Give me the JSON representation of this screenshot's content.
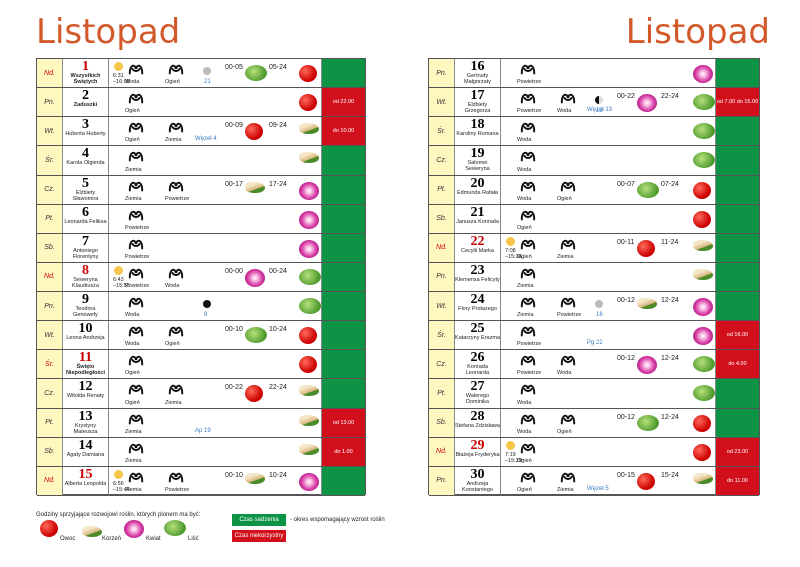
{
  "title_left": "Listopad",
  "title_right": "Listopad",
  "left_rows": [
    {
      "day": "Nd.",
      "num": "1",
      "names": "Wszystkich Świętych",
      "bold": true,
      "red": true,
      "sun": "6:31\n–16:08",
      "z1": "Woda",
      "z2": "Ogień",
      "moon": "full",
      "moontxt": "21",
      "t1": "00-05",
      "p1": "leaf",
      "t2": "05-24",
      "p2": "fruit",
      "side": "green",
      "sidetxt": ""
    },
    {
      "day": "Pn.",
      "num": "2",
      "names": "Zaduszki",
      "bold": true,
      "z1": "Ogień",
      "t2": "",
      "p2": "fruit",
      "side": "red",
      "sidetxt": "od 22.00"
    },
    {
      "day": "Wt.",
      "num": "3",
      "names": "Huberta Huberty",
      "z1": "Ogień",
      "z2": "Ziemia",
      "node": "Węzeł 4",
      "t1": "00-09",
      "p1": "fruit",
      "t2": "09-24",
      "p2": "root",
      "side": "red",
      "sidetxt": "do 10.00"
    },
    {
      "day": "Śr.",
      "num": "4",
      "names": "Karola Olgierda",
      "z1": "Ziemia",
      "p2": "root",
      "side": "green"
    },
    {
      "day": "Cz.",
      "num": "5",
      "names": "Elżbiety Sławomira",
      "z1": "Ziemia",
      "z2": "Powietrze",
      "t1": "00-17",
      "p1": "root",
      "t2": "17-24",
      "p2": "flower",
      "side": "green"
    },
    {
      "day": "Pt.",
      "num": "6",
      "names": "Leonarda Feliksa",
      "z1": "Powietrze",
      "p2": "flower",
      "side": "green"
    },
    {
      "day": "Sb.",
      "num": "7",
      "names": "Antoniego Florentyny",
      "z1": "Powietrze",
      "p2": "flower",
      "side": "green"
    },
    {
      "day": "Nd.",
      "num": "8",
      "names": "Seweryna Klaudiusza",
      "red": true,
      "sun": "6:43\n–15:55",
      "z1": "Powietrze",
      "z2": "Woda",
      "t1": "00-00",
      "p1": "flower",
      "t2": "00-24",
      "p2": "leaf",
      "side": "green"
    },
    {
      "day": "Pn.",
      "num": "9",
      "names": "Teodora Genowefy",
      "z1": "Woda",
      "moon": "new",
      "moontxt": "8",
      "p2": "leaf",
      "side": "green"
    },
    {
      "day": "Wt.",
      "num": "10",
      "names": "Leona Andrzeja",
      "z1": "Woda",
      "z2": "Ogień",
      "t1": "00-10",
      "p1": "leaf",
      "t2": "10-24",
      "p2": "fruit",
      "side": "green"
    },
    {
      "day": "Śr.",
      "num": "11",
      "names": "Święto Niepodległości",
      "bold": true,
      "red": true,
      "z1": "Ogień",
      "p2": "fruit",
      "side": "green"
    },
    {
      "day": "Cz.",
      "num": "12",
      "names": "Witolda Renaty",
      "z1": "Ogień",
      "z2": "Ziemia",
      "t1": "00-22",
      "p1": "fruit",
      "t2": "22-24",
      "p2": "root",
      "side": "green"
    },
    {
      "day": "Pt.",
      "num": "13",
      "names": "Krystyny Mateusza",
      "z1": "Ziemia",
      "node": "Ap 19",
      "p2": "root",
      "side": "red",
      "sidetxt": "od 13.00"
    },
    {
      "day": "Sb.",
      "num": "14",
      "names": "Agaty Damiana",
      "z1": "Ziemia",
      "p2": "root",
      "side": "red",
      "sidetxt": "do 1.00"
    },
    {
      "day": "Nd.",
      "num": "15",
      "names": "Alberta Leopolda",
      "red": true,
      "sun": "6:56\n–15:44",
      "z1": "Ziemia",
      "z2": "Powietrze",
      "t1": "00-10",
      "p1": "root",
      "t2": "10-24",
      "p2": "flower",
      "side": "green"
    }
  ],
  "right_rows": [
    {
      "day": "Pn.",
      "num": "16",
      "names": "Gertrudy Małgorzaty",
      "z1": "Powietrze",
      "p2": "flower",
      "side": "green"
    },
    {
      "day": "Wt.",
      "num": "17",
      "names": "Elżbiety Grzegorza",
      "z1": "Powietrze",
      "z2": "Woda",
      "moon": "q",
      "moontxt": "13",
      "node": "Węzeł 13",
      "t1": "00-22",
      "p1": "flower",
      "t2": "22-24",
      "p2": "leaf",
      "side": "red",
      "sidetxt": "od 7.00 do 15.00"
    },
    {
      "day": "Śr.",
      "num": "18",
      "names": "Karoliny Romana",
      "z1": "Woda",
      "p2": "leaf",
      "side": "green"
    },
    {
      "day": "Cz.",
      "num": "19",
      "names": "Salomei Seweryna",
      "z1": "Woda",
      "p2": "leaf",
      "side": "green"
    },
    {
      "day": "Pt.",
      "num": "20",
      "names": "Edmunda Rafała",
      "z1": "Woda",
      "z2": "Ogień",
      "t1": "00-07",
      "p1": "leaf",
      "t2": "07-24",
      "p2": "fruit",
      "side": "green"
    },
    {
      "day": "Sb.",
      "num": "21",
      "names": "Janusza Konrada",
      "z1": "Ogień",
      "p2": "fruit",
      "side": "green"
    },
    {
      "day": "Nd.",
      "num": "22",
      "names": "Cecylii Marka",
      "red": true,
      "sun": "7:08\n–15:36",
      "z1": "Ogień",
      "z2": "Ziemia",
      "t1": "00-11",
      "p1": "fruit",
      "t2": "11-24",
      "p2": "root",
      "side": "green"
    },
    {
      "day": "Pn.",
      "num": "23",
      "names": "Klemensa Felicyty",
      "z1": "Ziemia",
      "p2": "root",
      "side": "green"
    },
    {
      "day": "Wt.",
      "num": "24",
      "names": "Flory Protazego",
      "z1": "Ziemia",
      "z2": "Powietrze",
      "moon": "full",
      "moontxt": "16",
      "t1": "00-12",
      "p1": "root",
      "t2": "12-24",
      "p2": "flower",
      "side": "green"
    },
    {
      "day": "Śr.",
      "num": "25",
      "names": "Katarzyny Erazma",
      "z1": "Powietrze",
      "node": "Pg 22",
      "p2": "flower",
      "side": "red",
      "sidetxt": "od 16.00"
    },
    {
      "day": "Cz.",
      "num": "26",
      "names": "Konrada Leonarda",
      "z1": "Powietrze",
      "z2": "Woda",
      "t1": "00-12",
      "p1": "flower",
      "t2": "12-24",
      "p2": "leaf",
      "side": "red",
      "sidetxt": "do 4.00"
    },
    {
      "day": "Pt.",
      "num": "27",
      "names": "Walerego Dominika",
      "z1": "Woda",
      "p2": "leaf",
      "side": "green"
    },
    {
      "day": "Sb.",
      "num": "28",
      "names": "Stefana Zdzisława",
      "z1": "Woda",
      "z2": "Ogień",
      "t1": "00-12",
      "p1": "leaf",
      "t2": "12-24",
      "p2": "fruit",
      "side": "green"
    },
    {
      "day": "Nd.",
      "num": "29",
      "names": "Błażeja Fryderyka",
      "red": true,
      "sun": "7:19\n–15:29",
      "z1": "Ogień",
      "p2": "fruit",
      "side": "red",
      "sidetxt": "od 23.00"
    },
    {
      "day": "Pn.",
      "num": "30",
      "names": "Andrzeja Konstantego",
      "z1": "Ogień",
      "z2": "Ziemia",
      "node": "Węzeł 5",
      "t1": "00-15",
      "p1": "fruit",
      "t2": "15-24",
      "p2": "root",
      "side": "red",
      "sidetxt": "do 11.00"
    }
  ],
  "legend": {
    "heading": "Godziny sprzyjające rozwojowi roślin, których plonem ma być:",
    "fruit": "Owoc",
    "root": "Korzeń",
    "flower": "Kwiat",
    "leaf": "Liść",
    "green_badge": "Czas sadzenia",
    "green_desc": "- okres wspomagający wzrost roślin",
    "red_badge": "Czas niekorzystny"
  },
  "colors": {
    "title": "#d2592a",
    "green": "#0c9346",
    "red": "#d1101c",
    "daycell": "#fff7c0"
  }
}
